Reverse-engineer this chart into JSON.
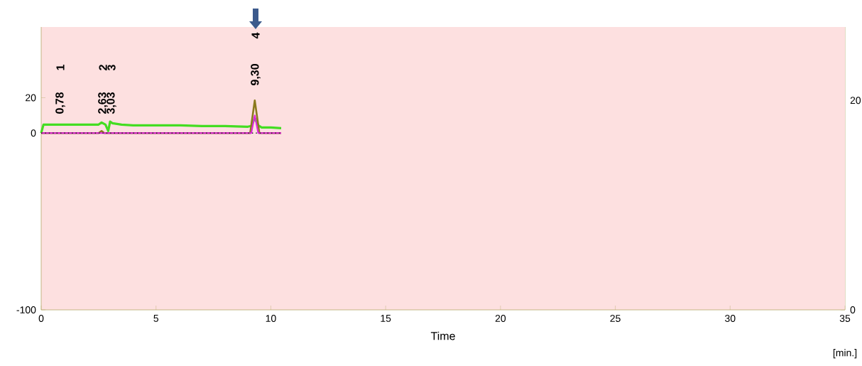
{
  "chart_data": {
    "type": "line",
    "xlabel": "Time",
    "annotations": [
      "1",
      "0,78",
      "2",
      "2,63",
      "3",
      "3,03",
      "4",
      "9,30",
      "[min.]"
    ],
    "series": [
      {
        "color": "#44dd22",
        "x": [
          0,
          0.1,
          0.3,
          1,
          2,
          2.5,
          2.63,
          2.8,
          2.92,
          3.0,
          3.1,
          3.5,
          4,
          5,
          6,
          7,
          8,
          9,
          9.15,
          9.3,
          9.45,
          9.6,
          10,
          10.45
        ],
        "values": [
          0,
          4.8,
          4.8,
          4.8,
          4.8,
          4.8,
          6,
          4.8,
          1.2,
          6.5,
          5.6,
          4.8,
          4.4,
          4.4,
          4.4,
          4.0,
          4.0,
          3.6,
          4.0,
          8.5,
          4.4,
          3.2,
          3.2,
          2.8
        ]
      },
      {
        "color": "#8b7a1e",
        "x": [
          0,
          2.5,
          2.63,
          2.75,
          9.1,
          9.3,
          9.5,
          10.45
        ],
        "values": [
          0,
          0,
          1.2,
          0,
          0,
          18.5,
          0,
          0
        ]
      },
      {
        "color": "#e020e0",
        "x": [
          0,
          9.15,
          9.3,
          9.45,
          10.45
        ],
        "values": [
          0,
          0,
          10,
          0,
          0
        ]
      },
      {
        "color": "#222222",
        "line_style": "dotted",
        "x": [
          0,
          10.45
        ],
        "values": [
          0,
          0
        ]
      }
    ],
    "xlim": [
      0,
      35
    ],
    "xticks": [
      0,
      5,
      10,
      15,
      20,
      25,
      30,
      35
    ],
    "ylim": [
      -100,
      60
    ],
    "yticks": [
      -100,
      0,
      20
    ],
    "y2lim": [
      0,
      27
    ],
    "y2ticks": [
      0,
      20
    ]
  }
}
